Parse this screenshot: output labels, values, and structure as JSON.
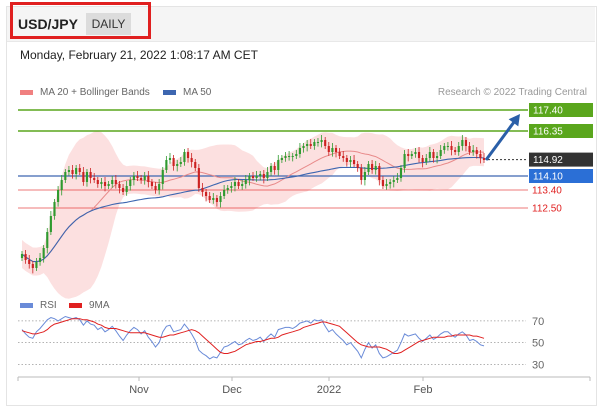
{
  "header": {
    "pair": "USD/JPY",
    "period_label": "DAILY",
    "timestamp": "Monday, February 21, 2022 1:08:17 AM CET",
    "credit": "Research © 2022 Trading Central"
  },
  "colors": {
    "resistance": "#5aa61d",
    "support": "#e02020",
    "current": "#333333",
    "ma50": "#3d66b0",
    "bollinger": "#f7a6a6",
    "ma20": "#e88a8a",
    "arrow": "#2a5fa8",
    "rsi": "#6a8bd8",
    "rsi_ma": "#e02020",
    "up_candle": "#2f9a2f",
    "down_candle": "#cc2222"
  },
  "chart_data": [
    {
      "type": "candlestick",
      "title": "",
      "legend": [
        {
          "name": "MA 20 + Bollinger Bands",
          "color": "#f08080"
        },
        {
          "name": "MA 50",
          "color": "#3d66b0"
        }
      ],
      "legend_placement": "top-left",
      "ylim": [
        108.6,
        117.9
      ],
      "levels": [
        {
          "value": 117.4,
          "label": "117.40",
          "role": "resistance"
        },
        {
          "value": 116.35,
          "label": "116.35",
          "role": "resistance"
        },
        {
          "value": 114.92,
          "label": "114.92",
          "role": "current"
        },
        {
          "value": 114.1,
          "label": "114.10",
          "role": "pivot"
        },
        {
          "value": 113.4,
          "label": "113.40",
          "role": "support"
        },
        {
          "value": 112.5,
          "label": "112.50",
          "role": "support"
        }
      ],
      "forecast_target": 117.4,
      "series": [
        {
          "name": "price",
          "values": [
            110.2,
            109.9,
            109.7,
            109.5,
            109.8,
            110.0,
            110.5,
            111.3,
            112.1,
            112.8,
            113.4,
            113.9,
            114.3,
            114.4,
            114.2,
            114.5,
            114.3,
            113.8,
            114.3,
            114.0,
            113.9,
            113.7,
            113.8,
            113.6,
            113.7,
            113.9,
            113.7,
            113.5,
            113.3,
            113.6,
            113.9,
            114.1,
            114.0,
            113.9,
            114.1,
            113.8,
            113.6,
            113.4,
            113.7,
            114.4,
            114.9,
            115.0,
            114.6,
            114.7,
            114.8,
            115.3,
            115.0,
            114.8,
            114.5,
            113.5,
            113.3,
            113.1,
            112.9,
            113.0,
            112.8,
            113.1,
            113.4,
            113.5,
            113.6,
            113.8,
            113.6,
            113.7,
            113.9,
            114.1,
            114.0,
            114.1,
            114.2,
            114.0,
            114.3,
            114.6,
            114.4,
            114.9,
            115.0,
            115.1,
            115.1,
            115.1,
            115.2,
            115.5,
            115.6,
            115.7,
            115.6,
            115.8,
            115.8,
            115.9,
            115.6,
            115.3,
            115.5,
            115.3,
            115.1,
            115.0,
            114.8,
            114.9,
            114.7,
            114.5,
            113.9,
            114.3,
            114.7,
            114.4,
            114.6,
            113.9,
            113.6,
            113.7,
            113.8,
            113.9,
            114.0,
            114.5,
            115.2,
            115.1,
            115.2,
            115.3,
            115.0,
            114.8,
            115.0,
            115.3,
            115.0,
            115.1,
            115.4,
            115.6,
            115.6,
            115.4,
            115.3,
            115.6,
            115.9,
            115.6,
            115.3,
            115.4,
            115.2,
            115.0,
            114.9
          ]
        }
      ]
    },
    {
      "type": "line",
      "title": "",
      "legend": [
        {
          "name": "RSI",
          "color": "#6a8bd8"
        },
        {
          "name": "9MA",
          "color": "#e02020"
        }
      ],
      "legend_placement": "top-left",
      "ylim": [
        23,
        80
      ],
      "ticks": [
        70,
        50,
        30
      ],
      "x_ticks": [
        "Nov",
        "Dec",
        "2022",
        "Feb"
      ],
      "series": [
        {
          "name": "RSI",
          "values": [
            62,
            58,
            55,
            54,
            60,
            63,
            67,
            71,
            73,
            72,
            70,
            72,
            74,
            73,
            72,
            73,
            71,
            66,
            70,
            67,
            66,
            62,
            64,
            60,
            62,
            65,
            61,
            56,
            52,
            57,
            61,
            64,
            62,
            58,
            61,
            55,
            51,
            46,
            50,
            60,
            65,
            66,
            60,
            61,
            62,
            67,
            63,
            58,
            52,
            43,
            40,
            38,
            35,
            37,
            36,
            41,
            46,
            47,
            49,
            51,
            48,
            49,
            52,
            54,
            52,
            53,
            55,
            51,
            55,
            58,
            55,
            62,
            63,
            64,
            64,
            63,
            65,
            68,
            69,
            70,
            68,
            71,
            70,
            71,
            65,
            60,
            62,
            58,
            55,
            52,
            48,
            50,
            46,
            42,
            36,
            44,
            50,
            45,
            48,
            40,
            36,
            37,
            39,
            41,
            43,
            50,
            58,
            56,
            57,
            58,
            54,
            51,
            54,
            57,
            53,
            55,
            58,
            60,
            60,
            57,
            55,
            58,
            60,
            57,
            52,
            53,
            51,
            48,
            47
          ]
        },
        {
          "name": "9MA",
          "values": [
            61,
            60,
            59,
            58,
            58,
            59,
            60,
            62,
            65,
            67,
            68,
            69,
            70,
            71,
            72,
            72,
            72,
            71,
            71,
            70,
            69,
            67,
            66,
            64,
            63,
            63,
            63,
            62,
            61,
            60,
            59,
            59,
            59,
            59,
            59,
            58,
            57,
            56,
            55,
            55,
            56,
            57,
            57,
            58,
            59,
            60,
            61,
            62,
            61,
            59,
            56,
            53,
            50,
            47,
            44,
            41,
            40,
            40,
            41,
            42,
            44,
            46,
            48,
            49,
            50,
            51,
            51,
            52,
            53,
            54,
            54,
            55,
            57,
            58,
            59,
            60,
            61,
            62,
            64,
            65,
            66,
            67,
            68,
            69,
            69,
            68,
            67,
            66,
            65,
            62,
            59,
            56,
            53,
            50,
            48,
            47,
            46,
            46,
            46,
            46,
            45,
            44,
            42,
            40,
            40,
            41,
            43,
            45,
            47,
            49,
            51,
            52,
            53,
            54,
            55,
            55,
            55,
            55,
            56,
            56,
            57,
            57,
            57,
            57,
            57,
            56,
            56,
            55,
            54
          ]
        }
      ]
    }
  ]
}
